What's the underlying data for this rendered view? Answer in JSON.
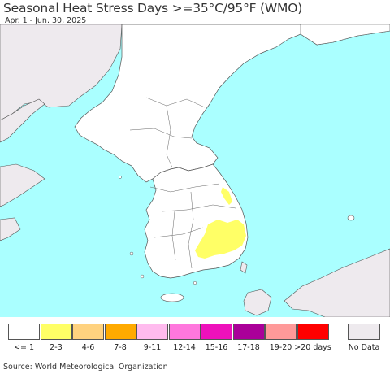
{
  "title": "Seasonal Heat Stress Days >=35°C/95°F (WMO)",
  "subtitle": "Apr. 1 - Jun. 30, 2025",
  "source": "Source: World Meteorological Organization",
  "colors": {
    "sea": "#aaffff",
    "land_in_region": "#ffffff",
    "land_outside": "#eeeaee",
    "heat_2_3": "#ffff66",
    "border": "#444444"
  },
  "legend": {
    "items": [
      {
        "label": "<= 1",
        "color": "#ffffff"
      },
      {
        "label": "2-3",
        "color": "#ffff66"
      },
      {
        "label": "4-6",
        "color": "#ffd27f"
      },
      {
        "label": "7-8",
        "color": "#ffaa00"
      },
      {
        "label": "9-11",
        "color": "#ffbbee"
      },
      {
        "label": "12-14",
        "color": "#ff77dd"
      },
      {
        "label": "15-16",
        "color": "#ee11bb"
      },
      {
        "label": "17-18",
        "color": "#aa0099"
      },
      {
        "label": "19-20",
        "color": "#ff9999"
      },
      {
        "label": ">20 days",
        "color": "#ff0000"
      }
    ],
    "nodata": {
      "label": "No Data",
      "color": "#eeeaee"
    }
  }
}
